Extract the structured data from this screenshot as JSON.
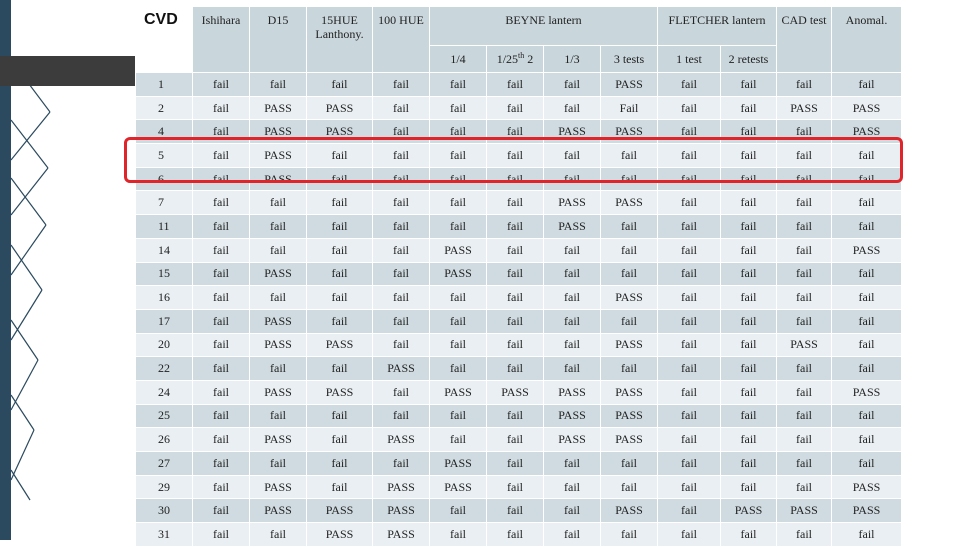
{
  "header": {
    "corner": "CVD",
    "columns": {
      "ishihara": "Ishihara",
      "d15": "D15",
      "hue15": "15HUE Lanthony.",
      "hue100": "100 HUE",
      "beyne": "BEYNE lantern",
      "fletcher": "FLETCHER lantern",
      "cad": "CAD test",
      "anomal": "Anomal."
    },
    "beyne_sub": [
      "1/4",
      "1/25th 2",
      "1/3",
      "3 tests"
    ],
    "fletcher_sub": [
      "1 test",
      "2 retests"
    ]
  },
  "rows": [
    {
      "id": "1",
      "vals": [
        "fail",
        "fail",
        "fail",
        "fail",
        "fail",
        "fail",
        "fail",
        "PASS",
        "fail",
        "fail",
        "fail",
        "fail"
      ]
    },
    {
      "id": "2",
      "vals": [
        "fail",
        "PASS",
        "PASS",
        "fail",
        "fail",
        "fail",
        "fail",
        "Fail",
        "fail",
        "fail",
        "PASS",
        "PASS"
      ]
    },
    {
      "id": "4",
      "vals": [
        "fail",
        "PASS",
        "PASS",
        "fail",
        "fail",
        "fail",
        "PASS",
        "PASS",
        "fail",
        "fail",
        "fail",
        "PASS"
      ]
    },
    {
      "id": "5",
      "vals": [
        "fail",
        "PASS",
        "fail",
        "fail",
        "fail",
        "fail",
        "fail",
        "fail",
        "fail",
        "fail",
        "fail",
        "fail"
      ]
    },
    {
      "id": "6",
      "vals": [
        "fail",
        "PASS",
        "fail",
        "fail",
        "fail",
        "fail",
        "fail",
        "fail",
        "fail",
        "fail",
        "fail",
        "fail"
      ]
    },
    {
      "id": "7",
      "vals": [
        "fail",
        "fail",
        "fail",
        "fail",
        "fail",
        "fail",
        "PASS",
        "PASS",
        "fail",
        "fail",
        "fail",
        "fail"
      ]
    },
    {
      "id": "11",
      "vals": [
        "fail",
        "fail",
        "fail",
        "fail",
        "fail",
        "fail",
        "PASS",
        "fail",
        "fail",
        "fail",
        "fail",
        "fail"
      ]
    },
    {
      "id": "14",
      "vals": [
        "fail",
        "fail",
        "fail",
        "fail",
        "PASS",
        "fail",
        "fail",
        "fail",
        "fail",
        "fail",
        "fail",
        "PASS"
      ]
    },
    {
      "id": "15",
      "vals": [
        "fail",
        "PASS",
        "fail",
        "fail",
        "PASS",
        "fail",
        "fail",
        "fail",
        "fail",
        "fail",
        "fail",
        "fail"
      ]
    },
    {
      "id": "16",
      "vals": [
        "fail",
        "fail",
        "fail",
        "fail",
        "fail",
        "fail",
        "fail",
        "PASS",
        "fail",
        "fail",
        "fail",
        "fail"
      ]
    },
    {
      "id": "17",
      "vals": [
        "fail",
        "PASS",
        "fail",
        "fail",
        "fail",
        "fail",
        "fail",
        "fail",
        "fail",
        "fail",
        "fail",
        "fail"
      ]
    },
    {
      "id": "20",
      "vals": [
        "fail",
        "PASS",
        "PASS",
        "fail",
        "fail",
        "fail",
        "fail",
        "PASS",
        "fail",
        "fail",
        "PASS",
        "fail"
      ]
    },
    {
      "id": "22",
      "vals": [
        "fail",
        "fail",
        "fail",
        "PASS",
        "fail",
        "fail",
        "fail",
        "fail",
        "fail",
        "fail",
        "fail",
        "fail"
      ]
    },
    {
      "id": "24",
      "vals": [
        "fail",
        "PASS",
        "PASS",
        "fail",
        "PASS",
        "PASS",
        "PASS",
        "PASS",
        "fail",
        "fail",
        "fail",
        "PASS"
      ]
    },
    {
      "id": "25",
      "vals": [
        "fail",
        "fail",
        "fail",
        "fail",
        "fail",
        "fail",
        "PASS",
        "PASS",
        "fail",
        "fail",
        "fail",
        "fail"
      ]
    },
    {
      "id": "26",
      "vals": [
        "fail",
        "PASS",
        "fail",
        "PASS",
        "fail",
        "fail",
        "PASS",
        "PASS",
        "fail",
        "fail",
        "fail",
        "fail"
      ]
    },
    {
      "id": "27",
      "vals": [
        "fail",
        "fail",
        "fail",
        "fail",
        "PASS",
        "fail",
        "fail",
        "fail",
        "fail",
        "fail",
        "fail",
        "fail"
      ]
    },
    {
      "id": "29",
      "vals": [
        "fail",
        "PASS",
        "fail",
        "PASS",
        "PASS",
        "fail",
        "fail",
        "fail",
        "fail",
        "fail",
        "fail",
        "PASS"
      ]
    },
    {
      "id": "30",
      "vals": [
        "fail",
        "PASS",
        "PASS",
        "PASS",
        "fail",
        "fail",
        "fail",
        "PASS",
        "fail",
        "PASS",
        "PASS",
        "PASS"
      ]
    },
    {
      "id": "31",
      "vals": [
        "fail",
        "fail",
        "PASS",
        "PASS",
        "fail",
        "fail",
        "fail",
        "fail",
        "fail",
        "fail",
        "fail",
        "fail"
      ]
    }
  ],
  "highlight": {
    "rows": [
      "5",
      "6"
    ],
    "color": "#e0252a"
  },
  "colors": {
    "header": "#c9d6dc",
    "row_dark": "#cfdbe0",
    "row_light": "#e9eff2",
    "accent": "#2b4a5f"
  }
}
